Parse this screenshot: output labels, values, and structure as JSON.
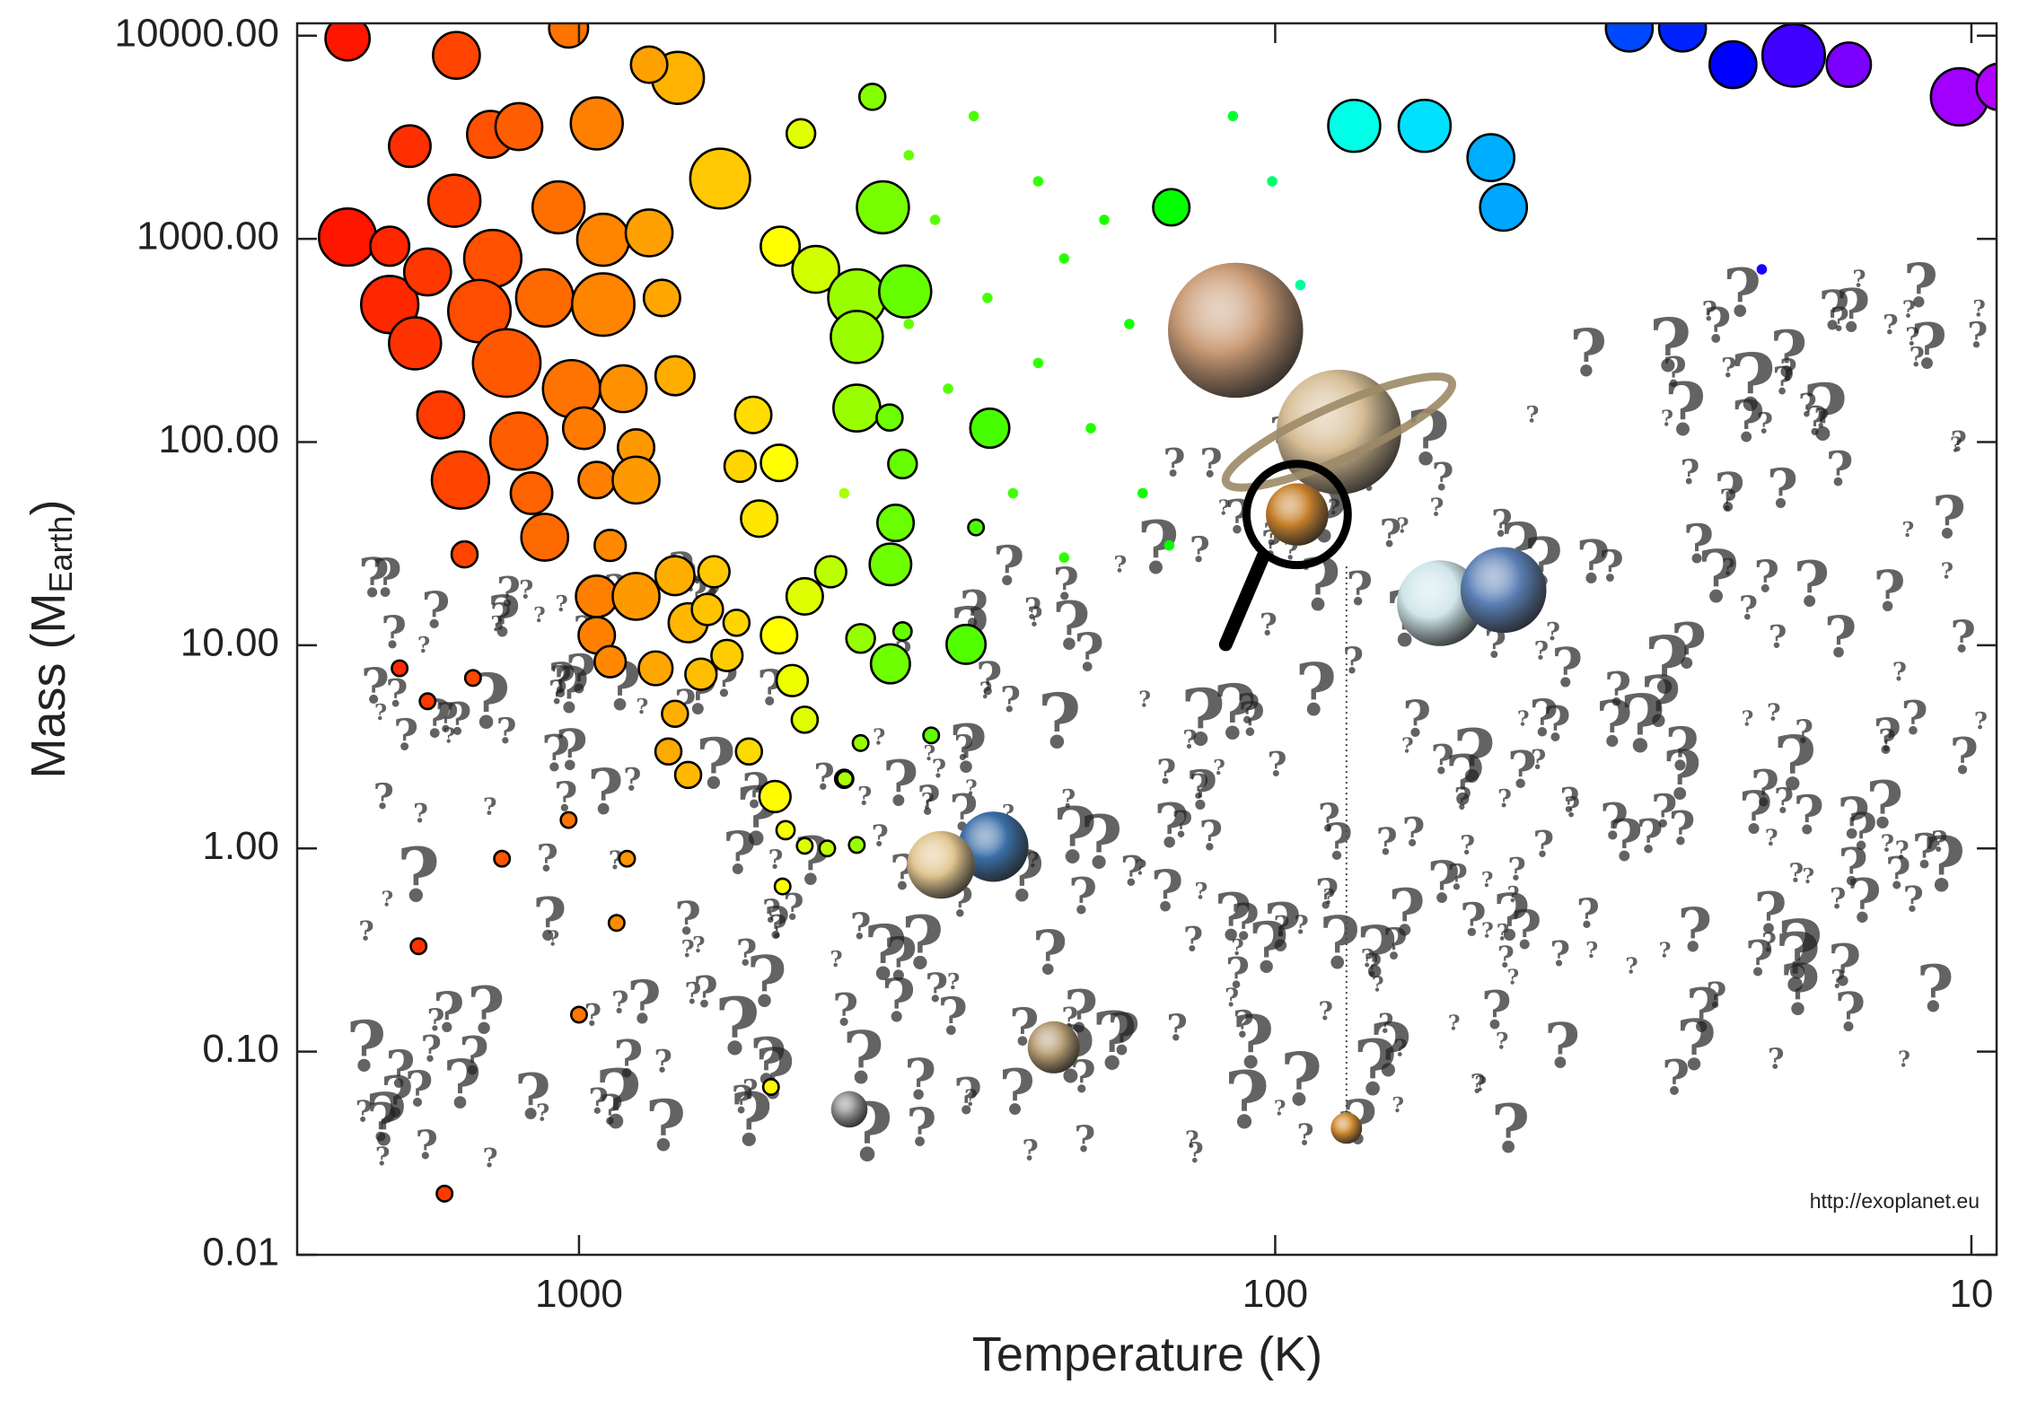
{
  "chart_data": {
    "type": "scatter",
    "xlabel": "Temperature (K)",
    "ylabel_parts": [
      "Mass (M",
      "Earth",
      ")"
    ],
    "credit": "http://exoplanet.eu",
    "xscale": "log",
    "yscale": "log",
    "xlim": [
      2540,
      9.2
    ],
    "ylim": [
      0.01,
      11500
    ],
    "xticks": [
      1000,
      100,
      10
    ],
    "yticks": [
      {
        "value": 0.01,
        "label": "0.01"
      },
      {
        "value": 0.1,
        "label": "0.10"
      },
      {
        "value": 1,
        "label": "1.00"
      },
      {
        "value": 10,
        "label": "10.00"
      },
      {
        "value": 100,
        "label": "100.00"
      },
      {
        "value": 1000,
        "label": "1000.00"
      },
      {
        "value": 10000,
        "label": "10000.00"
      }
    ],
    "colormap": "rainbow",
    "series": [
      {
        "outline": true,
        "x": [
          2150,
          1500,
          1035,
          721,
          793,
          1750,
          1340,
          1220,
          943,
          627,
          2150,
          1870,
          1510,
          1330,
          1070,
          923,
          793,
          1870,
          1650,
          1390,
          1120,
          923,
          760,
          1720,
          1270,
          1025,
          864,
          728,
          1580,
          1220,
          984,
          828,
          1480,
          1170,
          943,
          828,
          1120,
          1460,
          902,
          943,
          828,
          728,
          697,
          943,
          902,
          776,
          728,
          668,
          744,
          697,
          570,
          654,
          613,
          516,
          474,
          435,
          494,
          474,
          523,
          416,
          505,
          474,
          399,
          510,
          530,
          853,
          883,
          1000,
          1290,
          1700,
          1560,
          1810,
          1650,
          1420,
          1035,
          514,
          457,
          399,
          366,
          340,
          399,
          399,
          358,
          343,
          351,
          357,
          357,
          394,
          343,
          278,
          257,
          269,
          312,
          394,
          415,
          440,
          480,
          379,
          141,
          562,
          516,
          587,
          551,
          640,
          594,
          77,
          61,
          49,
          47,
          31,
          26,
          22,
          18,
          15,
          10.4,
          9.1
        ],
        "values": [
          9700,
          8000,
          10900,
          6200,
          7200,
          2860,
          3270,
          3570,
          3700,
          1980,
          1020,
          920,
          1540,
          800,
          1430,
          990,
          1070,
          475,
          687,
          441,
          512,
          475,
          512,
          306,
          245,
          183,
          183,
          212,
          136,
          101,
          117,
          94,
          65,
          56,
          65,
          65,
          34,
          28,
          31,
          17.4,
          17.4,
          22,
          12.9,
          11.2,
          8.3,
          7.7,
          4.6,
          7.2,
          3.0,
          2.3,
          3.0,
          15.0,
          8.9,
          11.2,
          17.4,
          23,
          6.7,
          4.3,
          1.8,
          2.2,
          1.23,
          1.03,
          1.04,
          0.65,
          0.067,
          0.89,
          0.43,
          0.152,
          0.89,
          0.33,
          0.02,
          7.7,
          5.3,
          6.9,
          1.38,
          920,
          708,
          512,
          1430,
          551,
          329,
          147,
          132,
          78,
          40,
          25,
          8.1,
          10.8,
          11.7,
          10.1,
          117,
          38,
          3.6,
          3.3,
          2.2,
          1.0,
          3300,
          5000,
          1430,
          136,
          79,
          76,
          42,
          23,
          12.9,
          3600,
          3600,
          2510,
          1430,
          10900,
          10900,
          7200,
          8000,
          7200,
          5000,
          5600
        ],
        "sizes": [
          17,
          18,
          15,
          20,
          14,
          16,
          18,
          18,
          20,
          23,
          22,
          15,
          20,
          22,
          20,
          20,
          18,
          22,
          18,
          24,
          22,
          24,
          14,
          20,
          26,
          22,
          18,
          15,
          18,
          22,
          16,
          14,
          22,
          16,
          14,
          18,
          18,
          10,
          12,
          16,
          18,
          15,
          15,
          14,
          12,
          13,
          10,
          12,
          10,
          10,
          10,
          12,
          12,
          14,
          14,
          12,
          12,
          10,
          12,
          7,
          7,
          6,
          6,
          6,
          6,
          6,
          6,
          6,
          6,
          6,
          6,
          6,
          6,
          6,
          6,
          15,
          18,
          22,
          20,
          20,
          20,
          18,
          10,
          11,
          14,
          16,
          15,
          11,
          7,
          15,
          15,
          6,
          6,
          6,
          6,
          6,
          11,
          10,
          14,
          14,
          14,
          12,
          14,
          12,
          10,
          20,
          20,
          18,
          18,
          18,
          18,
          18,
          24,
          17,
          22,
          18
        ]
      },
      {
        "outline": false,
        "x": [
          336,
          271,
          219,
          201,
          176,
          162,
          259,
          295,
          219,
          184,
          155,
          142,
          238,
          201,
          115,
          101,
          308,
          416,
          336,
          92,
          20
        ],
        "values": [
          2580,
          4020,
          1920,
          800,
          1240,
          381,
          512,
          183,
          245,
          117,
          56,
          31,
          56,
          27,
          4020,
          1920,
          1240,
          56,
          381,
          593,
          708
        ],
        "sizes": [
          4,
          4,
          4,
          4,
          4,
          4,
          4,
          4,
          4,
          4,
          4,
          4,
          4,
          4,
          4,
          4,
          4,
          4,
          4,
          4,
          4
        ]
      },
      {
        "outline": false,
        "shaded": true,
        "x": [
          114,
          81,
          58,
          47,
          254,
          302,
          208,
          409,
          93,
          79
        ],
        "values": [
          355,
          112,
          16.1,
          18.7,
          1.02,
          0.83,
          0.105,
          0.052,
          44,
          0.042
        ],
        "sizes": [
          52,
          48,
          33,
          33,
          27,
          26,
          20,
          14,
          24,
          12
        ],
        "colors": [
          "#c99a74",
          "#d6bd95",
          "#cfe6ea",
          "#5b7fb5",
          "#3a6ea6",
          "#e1c58f",
          "#b49a72",
          "#8c8c8c",
          "#c8812c",
          "#d08a30"
        ]
      }
    ]
  }
}
